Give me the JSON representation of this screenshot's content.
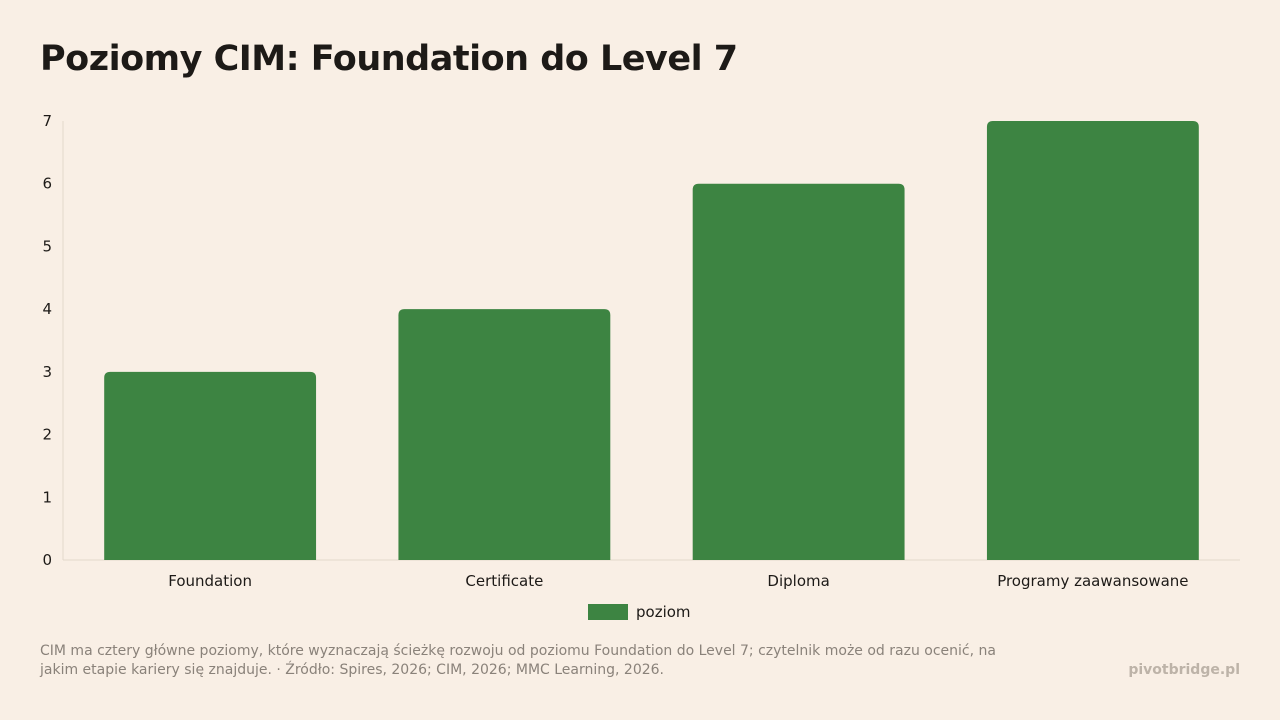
{
  "chart_data": {
    "type": "bar",
    "title": "Poziomy CIM: Foundation do Level 7",
    "categories": [
      "Foundation",
      "Certificate",
      "Diploma",
      "Programy zaawansowane"
    ],
    "series": [
      {
        "name": "poziom",
        "values": [
          3,
          4,
          6,
          7
        ]
      }
    ],
    "ylim": [
      0,
      7
    ],
    "yticks": [
      0,
      1,
      2,
      3,
      4,
      5,
      6,
      7
    ],
    "grid": false,
    "legend": "bottom-center",
    "bar_color": "#3d8442",
    "xlabel": "",
    "ylabel": ""
  },
  "footnote": "CIM ma cztery główne poziomy, które wyznaczają ścieżkę rozwoju od poziomu Foundation do Level 7; czytelnik może od razu ocenić, na jakim etapie kariery się znajduje. · Źródło: Spires, 2026; CIM, 2026; MMC Learning, 2026.",
  "brand": "pivotbridge.pl"
}
